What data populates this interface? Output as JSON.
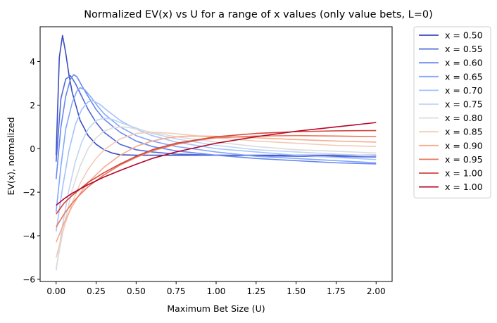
{
  "chart_data": {
    "type": "line",
    "title": "Normalized EV(x) vs U for a range of x values (only value bets, L=0)",
    "xlabel": "Maximum Bet Size (U)",
    "ylabel": "EV(x), normalized",
    "xlim": [
      -0.1,
      2.1
    ],
    "ylim": [
      -6.1,
      5.6
    ],
    "x_ticks": [
      0.0,
      0.25,
      0.5,
      0.75,
      1.0,
      1.25,
      1.5,
      1.75,
      2.0
    ],
    "x_tick_labels": [
      "0.00",
      "0.25",
      "0.50",
      "0.75",
      "1.00",
      "1.25",
      "1.50",
      "1.75",
      "2.00"
    ],
    "y_ticks": [
      -6,
      -4,
      -2,
      0,
      2,
      4
    ],
    "y_tick_labels": [
      "−6",
      "−4",
      "−2",
      "0",
      "2",
      "4"
    ],
    "grid": false,
    "legend_position": "outside-right",
    "series": [
      {
        "name": "x = 0.50",
        "color": "#3b4cc0",
        "points": [
          [
            0.0,
            -0.3
          ],
          [
            0.02,
            4.2
          ],
          [
            0.04,
            5.2
          ],
          [
            0.06,
            4.4
          ],
          [
            0.08,
            3.4
          ],
          [
            0.1,
            2.6
          ],
          [
            0.15,
            1.3
          ],
          [
            0.2,
            0.6
          ],
          [
            0.25,
            0.2
          ],
          [
            0.3,
            -0.05
          ],
          [
            0.35,
            -0.2
          ],
          [
            0.4,
            -0.28
          ],
          [
            0.5,
            -0.3
          ],
          [
            0.75,
            -0.3
          ],
          [
            1.0,
            -0.3
          ],
          [
            1.5,
            -0.3
          ],
          [
            2.0,
            -0.3
          ]
        ]
      },
      {
        "name": "x = 0.55",
        "color": "#4f69d9",
        "points": [
          [
            0.0,
            -0.6
          ],
          [
            0.03,
            2.3
          ],
          [
            0.06,
            3.2
          ],
          [
            0.09,
            3.35
          ],
          [
            0.12,
            3.0
          ],
          [
            0.16,
            2.4
          ],
          [
            0.2,
            1.8
          ],
          [
            0.25,
            1.2
          ],
          [
            0.3,
            0.75
          ],
          [
            0.4,
            0.2
          ],
          [
            0.5,
            -0.05
          ],
          [
            0.6,
            -0.15
          ],
          [
            0.75,
            -0.25
          ],
          [
            1.0,
            -0.3
          ],
          [
            1.5,
            -0.35
          ],
          [
            2.0,
            -0.38
          ]
        ]
      },
      {
        "name": "x = 0.60",
        "color": "#6788ee",
        "points": [
          [
            0.0,
            -1.4
          ],
          [
            0.03,
            1.0
          ],
          [
            0.06,
            2.4
          ],
          [
            0.09,
            3.2
          ],
          [
            0.11,
            3.4
          ],
          [
            0.13,
            3.3
          ],
          [
            0.16,
            2.9
          ],
          [
            0.2,
            2.4
          ],
          [
            0.25,
            1.8
          ],
          [
            0.3,
            1.35
          ],
          [
            0.4,
            0.75
          ],
          [
            0.5,
            0.35
          ],
          [
            0.6,
            0.1
          ],
          [
            0.75,
            -0.1
          ],
          [
            1.0,
            -0.3
          ],
          [
            1.25,
            -0.45
          ],
          [
            1.5,
            -0.55
          ],
          [
            1.75,
            -0.65
          ],
          [
            2.0,
            -0.7
          ]
        ]
      },
      {
        "name": "x = 0.65",
        "color": "#84a7fc",
        "points": [
          [
            0.0,
            -2.9
          ],
          [
            0.03,
            -0.8
          ],
          [
            0.06,
            0.9
          ],
          [
            0.1,
            2.1
          ],
          [
            0.13,
            2.65
          ],
          [
            0.15,
            2.8
          ],
          [
            0.18,
            2.7
          ],
          [
            0.22,
            2.35
          ],
          [
            0.26,
            1.95
          ],
          [
            0.3,
            1.6
          ],
          [
            0.4,
            1.0
          ],
          [
            0.5,
            0.6
          ],
          [
            0.6,
            0.35
          ],
          [
            0.75,
            0.1
          ],
          [
            1.0,
            -0.15
          ],
          [
            1.25,
            -0.35
          ],
          [
            1.5,
            -0.45
          ],
          [
            1.75,
            -0.55
          ],
          [
            2.0,
            -0.65
          ]
        ]
      },
      {
        "name": "x = 0.70",
        "color": "#a3c2fe",
        "points": [
          [
            0.0,
            -3.8
          ],
          [
            0.04,
            -1.8
          ],
          [
            0.08,
            -0.1
          ],
          [
            0.12,
            1.1
          ],
          [
            0.16,
            1.8
          ],
          [
            0.2,
            2.15
          ],
          [
            0.23,
            2.2
          ],
          [
            0.27,
            2.05
          ],
          [
            0.32,
            1.75
          ],
          [
            0.4,
            1.3
          ],
          [
            0.5,
            0.9
          ],
          [
            0.6,
            0.6
          ],
          [
            0.75,
            0.3
          ],
          [
            1.0,
            0.0
          ],
          [
            1.25,
            -0.15
          ],
          [
            1.5,
            -0.3
          ],
          [
            1.75,
            -0.4
          ],
          [
            2.0,
            -0.5
          ]
        ]
      },
      {
        "name": "x = 0.75",
        "color": "#c0d4f5",
        "points": [
          [
            0.0,
            -5.6
          ],
          [
            0.04,
            -3.5
          ],
          [
            0.08,
            -1.9
          ],
          [
            0.12,
            -0.6
          ],
          [
            0.16,
            0.3
          ],
          [
            0.2,
            0.9
          ],
          [
            0.25,
            1.3
          ],
          [
            0.3,
            1.4
          ],
          [
            0.35,
            1.35
          ],
          [
            0.4,
            1.2
          ],
          [
            0.5,
            0.95
          ],
          [
            0.6,
            0.7
          ],
          [
            0.75,
            0.45
          ],
          [
            1.0,
            0.15
          ],
          [
            1.25,
            -0.05
          ],
          [
            1.5,
            -0.15
          ],
          [
            1.75,
            -0.25
          ],
          [
            2.0,
            -0.32
          ]
        ]
      },
      {
        "name": "x = 0.80",
        "color": "#dddcdc",
        "points": [
          [
            0.0,
            -5.5
          ],
          [
            0.05,
            -3.5
          ],
          [
            0.1,
            -1.9
          ],
          [
            0.15,
            -0.8
          ],
          [
            0.2,
            0.0
          ],
          [
            0.25,
            0.5
          ],
          [
            0.3,
            0.8
          ],
          [
            0.35,
            0.95
          ],
          [
            0.4,
            1.0
          ],
          [
            0.45,
            0.98
          ],
          [
            0.5,
            0.9
          ],
          [
            0.6,
            0.75
          ],
          [
            0.75,
            0.55
          ],
          [
            1.0,
            0.3
          ],
          [
            1.25,
            0.1
          ],
          [
            1.5,
            -0.05
          ],
          [
            1.75,
            -0.12
          ],
          [
            2.0,
            -0.2
          ]
        ]
      },
      {
        "name": "x = 0.85",
        "color": "#f2cbb7",
        "points": [
          [
            0.0,
            -5.0
          ],
          [
            0.05,
            -3.6
          ],
          [
            0.1,
            -2.5
          ],
          [
            0.15,
            -1.6
          ],
          [
            0.2,
            -0.95
          ],
          [
            0.25,
            -0.45
          ],
          [
            0.3,
            -0.05
          ],
          [
            0.4,
            0.45
          ],
          [
            0.5,
            0.7
          ],
          [
            0.6,
            0.75
          ],
          [
            0.7,
            0.72
          ],
          [
            0.8,
            0.65
          ],
          [
            1.0,
            0.5
          ],
          [
            1.25,
            0.35
          ],
          [
            1.5,
            0.25
          ],
          [
            1.75,
            0.15
          ],
          [
            2.0,
            0.1
          ]
        ]
      },
      {
        "name": "x = 0.90",
        "color": "#f7ac8e",
        "points": [
          [
            0.0,
            -4.3
          ],
          [
            0.05,
            -3.4
          ],
          [
            0.1,
            -2.65
          ],
          [
            0.15,
            -2.05
          ],
          [
            0.2,
            -1.55
          ],
          [
            0.3,
            -0.85
          ],
          [
            0.4,
            -0.3
          ],
          [
            0.5,
            0.1
          ],
          [
            0.6,
            0.35
          ],
          [
            0.7,
            0.5
          ],
          [
            0.8,
            0.57
          ],
          [
            0.9,
            0.58
          ],
          [
            1.0,
            0.57
          ],
          [
            1.25,
            0.5
          ],
          [
            1.5,
            0.42
          ],
          [
            1.75,
            0.35
          ],
          [
            2.0,
            0.3
          ]
        ]
      },
      {
        "name": "x = 0.95",
        "color": "#e8785d",
        "points": [
          [
            0.0,
            -3.6
          ],
          [
            0.05,
            -3.0
          ],
          [
            0.1,
            -2.5
          ],
          [
            0.15,
            -2.1
          ],
          [
            0.2,
            -1.75
          ],
          [
            0.3,
            -1.2
          ],
          [
            0.4,
            -0.75
          ],
          [
            0.5,
            -0.4
          ],
          [
            0.6,
            -0.1
          ],
          [
            0.75,
            0.2
          ],
          [
            0.9,
            0.4
          ],
          [
            1.0,
            0.5
          ],
          [
            1.25,
            0.58
          ],
          [
            1.5,
            0.6
          ],
          [
            1.75,
            0.58
          ],
          [
            2.0,
            0.55
          ]
        ]
      },
      {
        "name": "x = 1.00",
        "color": "#d0473d",
        "points": [
          [
            0.0,
            -3.0
          ],
          [
            0.05,
            -2.5
          ],
          [
            0.1,
            -2.15
          ],
          [
            0.15,
            -1.85
          ],
          [
            0.2,
            -1.55
          ],
          [
            0.3,
            -1.1
          ],
          [
            0.4,
            -0.7
          ],
          [
            0.5,
            -0.35
          ],
          [
            0.6,
            -0.05
          ],
          [
            0.75,
            0.25
          ],
          [
            1.0,
            0.55
          ],
          [
            1.25,
            0.7
          ],
          [
            1.5,
            0.78
          ],
          [
            1.75,
            0.82
          ],
          [
            2.0,
            0.83
          ]
        ]
      },
      {
        "name": "x = 1.00",
        "color": "#b40426",
        "points": [
          [
            0.0,
            -2.6
          ],
          [
            0.05,
            -2.3
          ],
          [
            0.1,
            -2.05
          ],
          [
            0.15,
            -1.85
          ],
          [
            0.2,
            -1.65
          ],
          [
            0.3,
            -1.3
          ],
          [
            0.4,
            -1.0
          ],
          [
            0.5,
            -0.72
          ],
          [
            0.6,
            -0.45
          ],
          [
            0.75,
            -0.15
          ],
          [
            1.0,
            0.25
          ],
          [
            1.25,
            0.55
          ],
          [
            1.5,
            0.8
          ],
          [
            1.75,
            1.0
          ],
          [
            2.0,
            1.2
          ]
        ]
      }
    ]
  }
}
